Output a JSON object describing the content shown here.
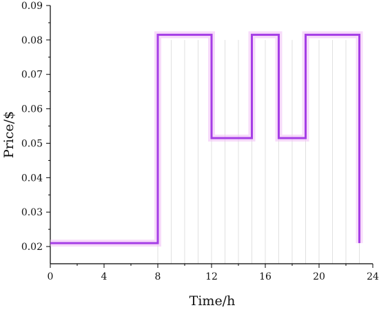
{
  "chart_data": {
    "type": "line",
    "step": true,
    "xlabel": "Time/h",
    "ylabel": "Price/$",
    "xlim": [
      0,
      24
    ],
    "ylim": [
      0.015,
      0.09
    ],
    "xticks": [
      0,
      4,
      8,
      12,
      16,
      20,
      24
    ],
    "yticks": [
      0.02,
      0.03,
      0.04,
      0.05,
      0.06,
      0.07,
      0.08,
      0.09
    ],
    "xtick_labels": [
      "0",
      "4",
      "8",
      "12",
      "16",
      "20",
      "24"
    ],
    "ytick_labels": [
      "0.02",
      "0.03",
      "0.04",
      "0.05",
      "0.06",
      "0.07",
      "0.08",
      "0.09"
    ],
    "grid": false,
    "series": [
      {
        "color": "#a53ee6",
        "x": [
          0,
          8,
          8,
          12,
          12,
          15,
          15,
          17,
          17,
          19,
          19,
          23,
          23
        ],
        "y": [
          0.021,
          0.021,
          0.0815,
          0.0815,
          0.0515,
          0.0515,
          0.0815,
          0.0815,
          0.0515,
          0.0515,
          0.0815,
          0.0815,
          0.021
        ]
      }
    ]
  }
}
